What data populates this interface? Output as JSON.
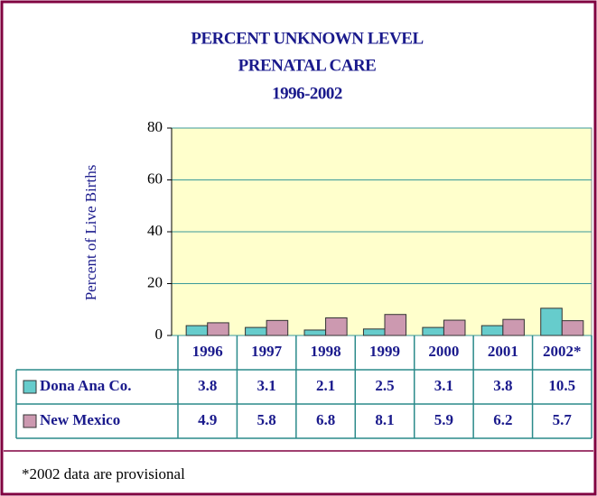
{
  "chart_data": {
    "type": "bar",
    "title": [
      "PERCENT UNKNOWN LEVEL",
      "PRENATAL CARE",
      "1996-2002"
    ],
    "y_label": "Percent of Live Births",
    "categories": [
      "1996",
      "1997",
      "1998",
      "1999",
      "2000",
      "2001",
      "2002*"
    ],
    "series": [
      {
        "name": "Dona Ana Co.",
        "color": "#66cccc",
        "values": [
          3.8,
          3.1,
          2.1,
          2.5,
          3.1,
          3.8,
          10.5
        ]
      },
      {
        "name": "New Mexico",
        "color": "#cc99b0",
        "values": [
          4.9,
          5.8,
          6.8,
          8.1,
          5.9,
          6.2,
          5.7
        ]
      }
    ],
    "ylim": [
      0,
      80
    ],
    "yticks": [
      0,
      20,
      40,
      60,
      80
    ],
    "grid": true,
    "note": "*2002 data are provisional"
  }
}
